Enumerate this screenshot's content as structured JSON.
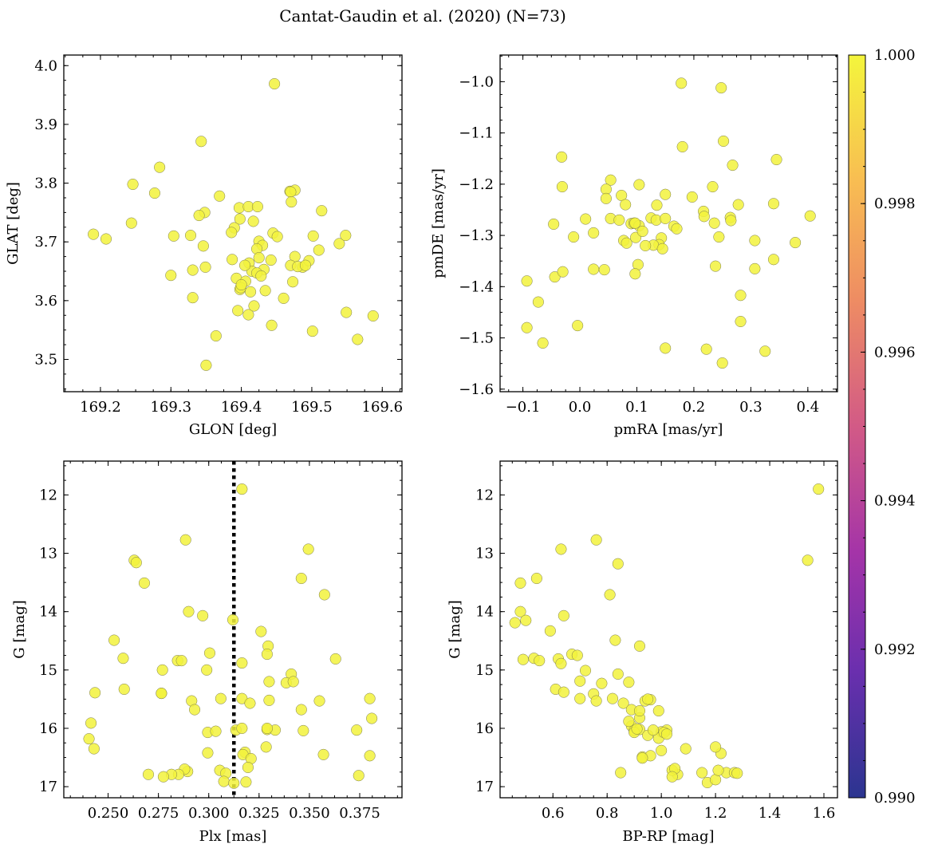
{
  "chart_data": [
    {
      "type": "scatter",
      "title": "Cantat-Gaudin et al. (2020) (N=73)",
      "xlabel": "GLON [deg]",
      "ylabel": "GLAT [deg]",
      "xlim": [
        169.148,
        169.628
      ],
      "ylim": [
        3.445,
        4.018
      ],
      "xticks": [
        169.2,
        169.3,
        169.4,
        169.5,
        169.6
      ],
      "xtick_labels": [
        "169.2",
        "169.3",
        "169.4",
        "169.5",
        "169.6"
      ],
      "yticks": [
        3.5,
        3.6,
        3.7,
        3.8,
        3.9,
        4.0
      ],
      "ytick_labels": [
        "3.5",
        "3.6",
        "3.7",
        "3.8",
        "3.9",
        "4.0"
      ],
      "x": [
        169.447,
        169.343,
        169.284,
        169.246,
        169.277,
        169.208,
        169.19,
        169.244,
        169.304,
        169.328,
        169.348,
        169.369,
        169.39,
        169.397,
        169.41,
        169.423,
        169.398,
        169.417,
        169.425,
        169.43,
        169.445,
        169.469,
        169.476,
        169.47,
        169.514,
        169.51,
        169.502,
        169.539,
        169.548,
        169.3,
        169.331,
        169.346,
        169.387,
        169.393,
        169.398,
        169.406,
        169.411,
        169.415,
        169.422,
        169.432,
        169.442,
        169.451,
        169.471,
        169.476,
        169.487,
        169.496,
        169.331,
        169.349,
        169.395,
        169.41,
        169.418,
        169.434,
        169.46,
        169.473,
        169.364,
        169.35,
        169.443,
        169.501,
        169.549,
        169.565,
        169.587,
        169.34,
        169.386,
        169.399,
        169.405,
        169.413,
        169.422,
        169.425,
        169.428,
        169.4,
        169.47,
        169.48,
        169.491
      ],
      "y": [
        3.969,
        3.871,
        3.827,
        3.798,
        3.783,
        3.705,
        3.713,
        3.732,
        3.71,
        3.711,
        3.75,
        3.778,
        3.724,
        3.758,
        3.76,
        3.76,
        3.739,
        3.735,
        3.701,
        3.694,
        3.715,
        3.786,
        3.788,
        3.785,
        3.753,
        3.686,
        3.71,
        3.697,
        3.711,
        3.643,
        3.652,
        3.693,
        3.67,
        3.638,
        3.619,
        3.633,
        3.664,
        3.65,
        3.688,
        3.653,
        3.669,
        3.709,
        3.768,
        3.675,
        3.657,
        3.668,
        3.605,
        3.657,
        3.583,
        3.576,
        3.591,
        3.617,
        3.604,
        3.632,
        3.54,
        3.49,
        3.558,
        3.548,
        3.58,
        3.534,
        3.574,
        3.745,
        3.716,
        3.622,
        3.66,
        3.615,
        3.647,
        3.673,
        3.642,
        3.627,
        3.66,
        3.658,
        3.66
      ],
      "color_value": 1.0
    },
    {
      "type": "scatter",
      "xlabel": "pmRA [mas/yr]",
      "ylabel": "pmDE [mas/yr]",
      "xlim": [
        -0.14,
        0.452
      ],
      "ylim": [
        -1.605,
        -0.948
      ],
      "xticks": [
        -0.1,
        0.0,
        0.1,
        0.2,
        0.3,
        0.4
      ],
      "xtick_labels": [
        "−0.1",
        "0.0",
        "0.1",
        "0.2",
        "0.3",
        "0.4"
      ],
      "yticks": [
        -1.6,
        -1.5,
        -1.4,
        -1.3,
        -1.2,
        -1.1,
        -1.0
      ],
      "ytick_labels": [
        "−1.6",
        "−1.5",
        "−1.4",
        "−1.3",
        "−1.2",
        "−1.1",
        "−1.0"
      ],
      "x": [
        0.178,
        0.248,
        0.252,
        0.18,
        0.268,
        0.345,
        -0.032,
        -0.031,
        0.054,
        0.046,
        0.046,
        0.104,
        0.073,
        0.15,
        0.197,
        0.233,
        0.217,
        0.218,
        0.264,
        0.265,
        0.236,
        0.278,
        0.34,
        0.404,
        0.378,
        0.307,
        0.244,
        0.307,
        0.34,
        -0.046,
        0.01,
        0.024,
        0.054,
        0.069,
        0.077,
        0.082,
        0.09,
        0.095,
        0.098,
        0.104,
        0.125,
        0.134,
        0.143,
        0.15,
        0.165,
        0.17,
        0.139,
        0.102,
        0.097,
        0.129,
        0.145,
        0.238,
        0.282,
        0.282,
        -0.093,
        -0.073,
        -0.044,
        -0.03,
        -0.011,
        -0.093,
        -0.065,
        0.024,
        0.043,
        -0.004,
        0.15,
        0.222,
        0.25,
        0.325,
        0.097,
        0.115,
        0.135,
        0.11,
        0.08
      ],
      "y": [
        -1.003,
        -1.012,
        -1.116,
        -1.127,
        -1.163,
        -1.152,
        -1.147,
        -1.205,
        -1.192,
        -1.21,
        -1.228,
        -1.201,
        -1.222,
        -1.22,
        -1.225,
        -1.205,
        -1.253,
        -1.263,
        -1.265,
        -1.271,
        -1.276,
        -1.24,
        -1.238,
        -1.262,
        -1.314,
        -1.31,
        -1.303,
        -1.365,
        -1.347,
        -1.278,
        -1.268,
        -1.295,
        -1.267,
        -1.27,
        -1.31,
        -1.315,
        -1.277,
        -1.276,
        -1.304,
        -1.281,
        -1.266,
        -1.27,
        -1.305,
        -1.267,
        -1.282,
        -1.287,
        -1.318,
        -1.357,
        -1.375,
        -1.319,
        -1.326,
        -1.36,
        -1.417,
        -1.468,
        -1.389,
        -1.43,
        -1.381,
        -1.371,
        -1.303,
        -1.48,
        -1.51,
        -1.366,
        -1.367,
        -1.476,
        -1.52,
        -1.522,
        -1.549,
        -1.526,
        -1.276,
        -1.32,
        -1.241,
        -1.292,
        -1.24
      ],
      "color_value": 1.0
    },
    {
      "type": "scatter",
      "xlabel": "Plx [mas]",
      "ylabel": "G [mag]",
      "xlim": [
        0.228,
        0.396
      ],
      "ylim": [
        17.19,
        11.42
      ],
      "y_inverted": true,
      "vline_x": 0.3125,
      "xticks": [
        0.25,
        0.275,
        0.3,
        0.325,
        0.35,
        0.375
      ],
      "xtick_labels": [
        "0.250",
        "0.275",
        "0.300",
        "0.325",
        "0.350",
        "0.375"
      ],
      "yticks": [
        12,
        13,
        14,
        15,
        16,
        17
      ],
      "ytick_labels": [
        "12",
        "13",
        "14",
        "15",
        "16",
        "17"
      ],
      "x": [
        0.3165,
        0.2885,
        0.3495,
        0.263,
        0.264,
        0.268,
        0.346,
        0.3575,
        0.29,
        0.297,
        0.312,
        0.326,
        0.3295,
        0.253,
        0.2575,
        0.277,
        0.2845,
        0.2865,
        0.3005,
        0.299,
        0.2765,
        0.3165,
        0.329,
        0.341,
        0.363,
        0.258,
        0.2435,
        0.2765,
        0.2915,
        0.293,
        0.306,
        0.3165,
        0.3205,
        0.33,
        0.3385,
        0.346,
        0.355,
        0.38,
        0.381,
        0.2415,
        0.2405,
        0.243,
        0.2995,
        0.3035,
        0.3135,
        0.3165,
        0.318,
        0.329,
        0.333,
        0.347,
        0.3735,
        0.3285,
        0.317,
        0.321,
        0.3195,
        0.38,
        0.2995,
        0.3055,
        0.3085,
        0.3185,
        0.2895,
        0.288,
        0.285,
        0.2815,
        0.2775,
        0.27,
        0.3075,
        0.3125,
        0.3745,
        0.357,
        0.329,
        0.342,
        0.33
      ],
      "y": [
        11.9,
        12.77,
        12.93,
        13.12,
        13.16,
        13.51,
        13.43,
        13.71,
        14.0,
        14.07,
        14.14,
        14.34,
        14.59,
        14.49,
        14.8,
        15.0,
        14.84,
        14.84,
        14.71,
        15.0,
        15.4,
        14.88,
        14.73,
        15.07,
        14.81,
        15.33,
        15.39,
        15.4,
        15.53,
        15.68,
        15.49,
        15.49,
        15.57,
        15.2,
        15.22,
        15.68,
        15.53,
        15.49,
        15.83,
        15.91,
        16.18,
        16.35,
        16.07,
        16.05,
        16.03,
        16.0,
        16.41,
        16.02,
        16.03,
        16.04,
        16.03,
        16.32,
        16.45,
        16.52,
        16.67,
        16.47,
        16.42,
        16.72,
        16.77,
        16.92,
        16.74,
        16.7,
        16.79,
        16.79,
        16.83,
        16.79,
        16.91,
        16.94,
        16.81,
        16.45,
        16.0,
        15.2,
        15.52
      ],
      "color_value": 1.0
    },
    {
      "type": "scatter",
      "xlabel": "BP-RP [mag]",
      "ylabel": "G [mag]",
      "xlim": [
        0.405,
        1.65
      ],
      "ylim": [
        17.19,
        11.42
      ],
      "y_inverted": true,
      "xticks": [
        0.6,
        0.8,
        1.0,
        1.2,
        1.4,
        1.6
      ],
      "xtick_labels": [
        "0.6",
        "0.8",
        "1.0",
        "1.2",
        "1.4",
        "1.6"
      ],
      "yticks": [
        12,
        13,
        14,
        15,
        16,
        17
      ],
      "ytick_labels": [
        "12",
        "13",
        "14",
        "15",
        "16",
        "17"
      ],
      "x": [
        1.58,
        1.54,
        0.76,
        0.63,
        0.84,
        0.48,
        0.54,
        0.81,
        0.48,
        0.5,
        0.46,
        0.59,
        0.64,
        0.83,
        0.92,
        0.49,
        0.53,
        0.55,
        0.62,
        0.63,
        0.67,
        0.69,
        0.72,
        0.7,
        0.61,
        0.64,
        0.75,
        0.78,
        0.84,
        0.7,
        0.76,
        0.86,
        0.82,
        0.88,
        0.94,
        0.96,
        0.92,
        0.89,
        0.9,
        0.92,
        0.9,
        0.95,
        1.0,
        0.99,
        0.93,
        0.96,
        1.0,
        1.02,
        1.06,
        1.04,
        1.05,
        1.04,
        1.09,
        1.15,
        1.17,
        1.2,
        1.22,
        1.24,
        1.27,
        1.28,
        1.2,
        1.21,
        0.93,
        0.95,
        0.97,
        0.85,
        0.89,
        1.01,
        0.91,
        0.99,
        0.88,
        0.92,
        1.02
      ],
      "y": [
        11.9,
        13.12,
        12.77,
        12.93,
        13.18,
        13.51,
        13.43,
        13.71,
        14.0,
        14.15,
        14.19,
        14.33,
        14.07,
        14.49,
        14.59,
        14.82,
        14.8,
        14.84,
        14.81,
        14.89,
        14.73,
        14.75,
        15.01,
        15.19,
        15.33,
        15.38,
        15.41,
        15.23,
        15.07,
        15.49,
        15.53,
        15.57,
        15.49,
        15.21,
        15.53,
        15.51,
        15.82,
        15.96,
        16.04,
        16.02,
        16.07,
        16.12,
        16.06,
        16.17,
        16.49,
        16.47,
        16.38,
        16.03,
        16.79,
        16.72,
        16.69,
        16.83,
        16.35,
        16.76,
        16.93,
        16.88,
        16.43,
        16.76,
        16.76,
        16.77,
        16.32,
        16.72,
        16.51,
        15.5,
        16.03,
        16.76,
        15.68,
        16.07,
        16.01,
        15.7,
        15.88,
        15.7,
        16.1
      ],
      "color_value": 1.0
    }
  ],
  "colorbar": {
    "min": 0.99,
    "max": 1.0,
    "colormap": "plasma",
    "ticks": [
      0.99,
      0.992,
      0.994,
      0.996,
      0.998,
      1.0
    ],
    "tick_labels": [
      "0.990",
      "0.992",
      "0.994",
      "0.996",
      "0.998",
      "1.000"
    ]
  },
  "colors": {
    "point_fill": "#f2f23c",
    "point_edge": "#7a7a50",
    "vline": "#000000",
    "cmap_stops": [
      "#2b3590",
      "#6a2fae",
      "#a434a8",
      "#d25a86",
      "#ee8c63",
      "#f8bd52",
      "#f4f53c"
    ]
  }
}
